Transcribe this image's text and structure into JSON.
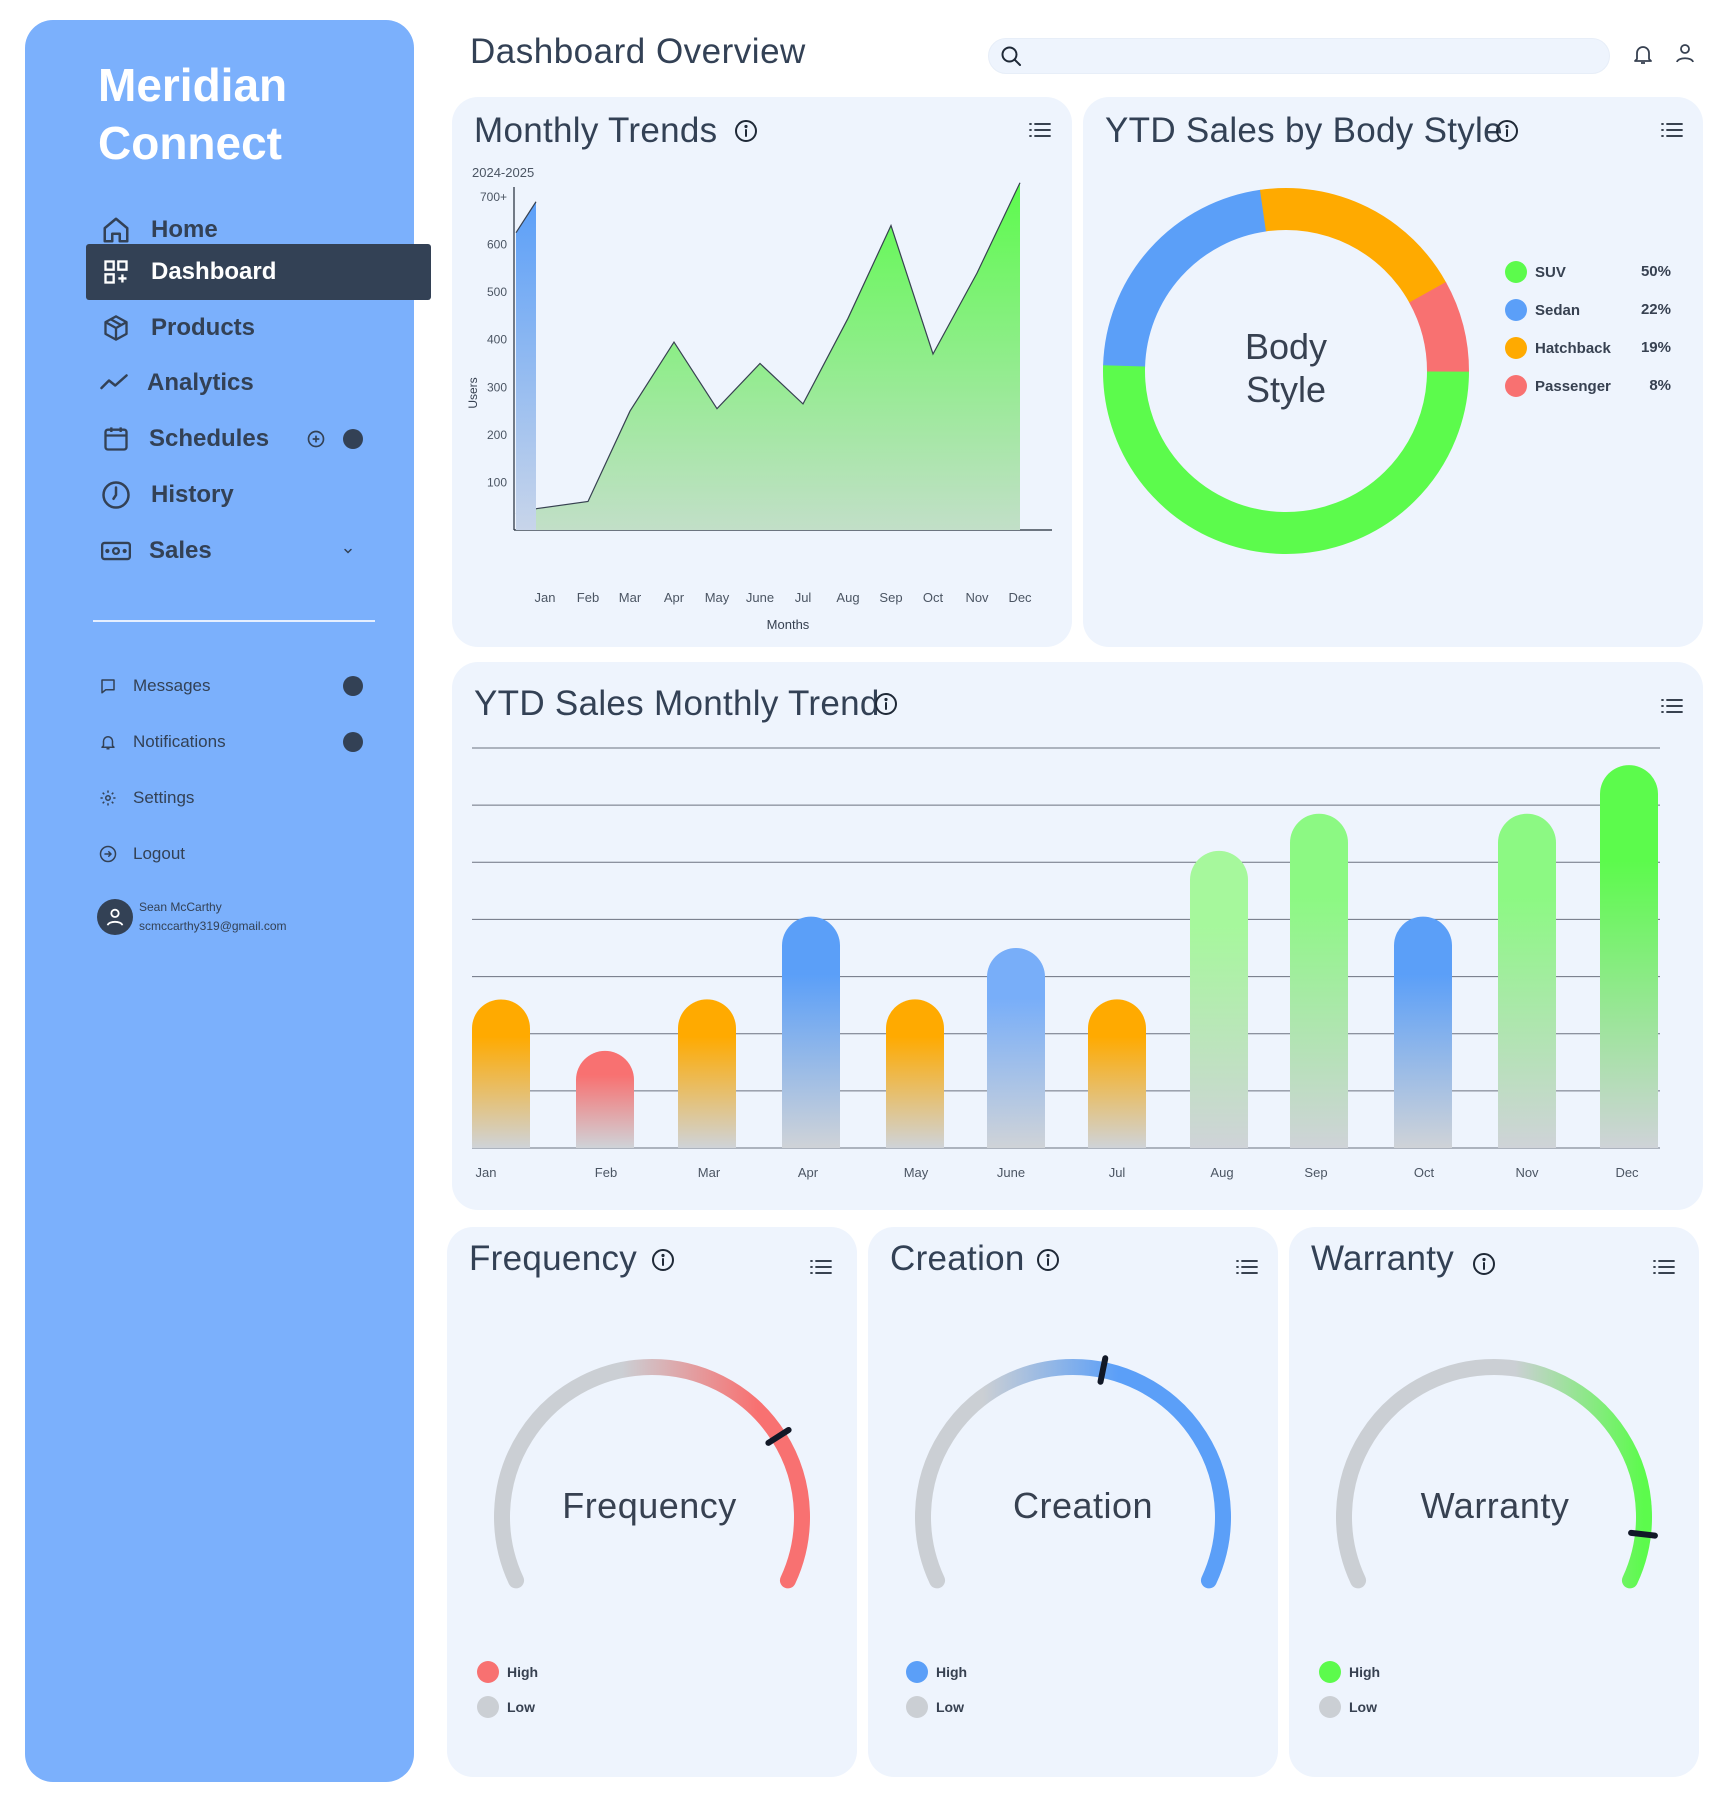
{
  "sidebar": {
    "brand": "Meridian Connect",
    "nav": [
      {
        "label": "Home",
        "icon": "home-icon"
      },
      {
        "label": "Dashboard",
        "icon": "dashboard-icon"
      },
      {
        "label": "Products",
        "icon": "box-icon"
      },
      {
        "label": "Analytics",
        "icon": "trend-icon"
      },
      {
        "label": "Schedules",
        "icon": "calendar-icon"
      },
      {
        "label": "History",
        "icon": "clock-icon"
      },
      {
        "label": "Sales",
        "icon": "cash-icon"
      }
    ],
    "sub": [
      {
        "label": "Messages",
        "icon": "message-icon"
      },
      {
        "label": "Notifications",
        "icon": "bell-icon"
      },
      {
        "label": "Settings",
        "icon": "gear-icon"
      },
      {
        "label": "Logout",
        "icon": "logout-icon"
      }
    ],
    "user": {
      "name": "Sean McCarthy",
      "email": "scmccarthy319@gmail.com"
    }
  },
  "header": {
    "title": "Dashboard Overview",
    "search_placeholder": ""
  },
  "colors": {
    "sidebar": "#7bb0fc",
    "dark": "#334155",
    "card": "#eef4fd",
    "green": "#5cfb4c",
    "blue": "#5b9ff8",
    "orange": "#ffaa00",
    "red": "#f87171",
    "grey": "#cbcfd4"
  },
  "cards": {
    "monthly_trends": {
      "title": "Monthly Trends",
      "subtitle": "2024-2025"
    },
    "body_style": {
      "title": "YTD Sales by Body Style",
      "center_line1": "Body",
      "center_line2": "Style"
    },
    "ytd_trend": {
      "title": "YTD Sales Monthly Trend"
    },
    "frequency": {
      "title": "Frequency",
      "label": "Frequency",
      "high": "High",
      "low": "Low"
    },
    "creation": {
      "title": "Creation",
      "label": "Creation",
      "high": "High",
      "low": "Low"
    },
    "warranty": {
      "title": "Warranty",
      "label": "Warranty",
      "high": "High",
      "low": "Low"
    }
  },
  "chart_data": [
    {
      "type": "area",
      "title": "Monthly Trends",
      "subtitle": "2024-2025",
      "xlabel": "Months",
      "ylabel": "Users",
      "categories": [
        "Jan",
        "Feb",
        "Mar",
        "Apr",
        "May",
        "June",
        "Jul",
        "Aug",
        "Sep",
        "Oct",
        "Nov",
        "Dec"
      ],
      "yticks": [
        "100",
        "200",
        "300",
        "400",
        "500",
        "600",
        "700+"
      ],
      "ylim": [
        0,
        700
      ],
      "series": [
        {
          "values": [
            75,
            60,
            250,
            395,
            255,
            350,
            265,
            445,
            640,
            370,
            540,
            730
          ]
        }
      ],
      "grid": false
    },
    {
      "type": "pie",
      "title": "YTD Sales by Body Style",
      "categories": [
        "SUV",
        "Sedan",
        "Hatchback",
        "Passenger"
      ],
      "values": [
        50,
        22,
        19,
        8
      ],
      "labels": [
        "50%",
        "22%",
        "19%",
        "8%"
      ],
      "colors": [
        "#5cfb4c",
        "#5b9ff8",
        "#ffaa00",
        "#f87171"
      ],
      "legend": "right"
    },
    {
      "type": "bar",
      "title": "YTD Sales Monthly Trend",
      "categories": [
        "Jan",
        "Feb",
        "Mar",
        "Apr",
        "May",
        "June",
        "Jul",
        "Aug",
        "Sep",
        "Oct",
        "Nov",
        "Dec"
      ],
      "values": [
        26,
        17,
        26,
        40.5,
        26,
        35,
        26,
        52,
        58.5,
        40.5,
        58.5,
        67
      ],
      "colors": [
        "#ffaa00",
        "#f87171",
        "#ffaa00",
        "#5b9ff8",
        "#ffaa00",
        "#78aef9",
        "#ffaa00",
        "#a6f89c",
        "#8cf983",
        "#5b9ff8",
        "#8cf983",
        "#5cfb4c"
      ],
      "ylim": [
        0,
        70
      ],
      "grid": true
    },
    {
      "type": "gauge",
      "title": "Frequency",
      "value": 0.75,
      "color": "#f87171",
      "legend": [
        "High",
        "Low"
      ]
    },
    {
      "type": "gauge",
      "title": "Creation",
      "value": 0.55,
      "color": "#5b9ff8",
      "legend": [
        "High",
        "Low"
      ]
    },
    {
      "type": "gauge",
      "title": "Warranty",
      "value": 0.92,
      "color": "#5cfb4c",
      "legend": [
        "High",
        "Low"
      ]
    }
  ]
}
